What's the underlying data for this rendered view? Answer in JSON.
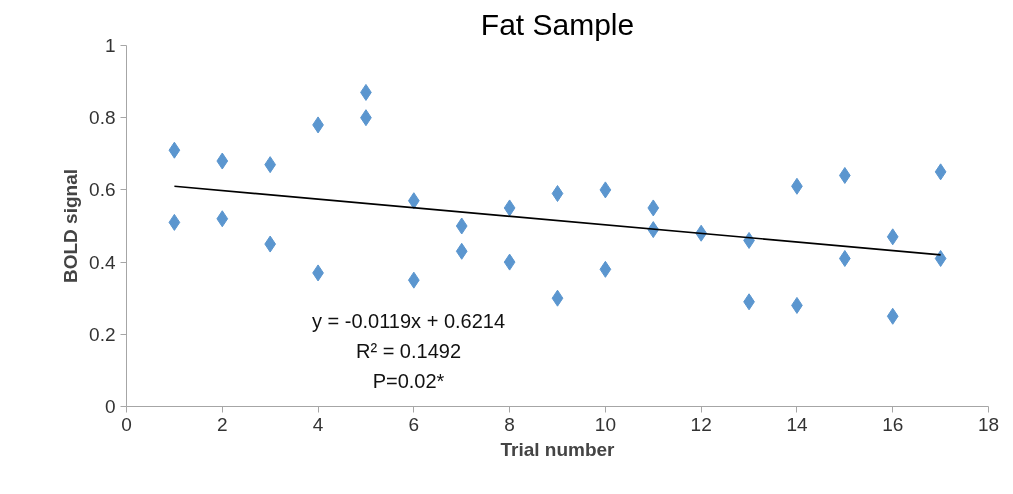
{
  "chart_data": {
    "type": "scatter",
    "title": "Fat Sample",
    "xlabel": "Trial number",
    "ylabel": "BOLD signal",
    "xlim": [
      0,
      18
    ],
    "xticks": [
      0,
      2,
      4,
      6,
      8,
      10,
      12,
      14,
      16,
      18
    ],
    "ylim": [
      0,
      1
    ],
    "yticks": [
      0,
      0.2,
      0.4,
      0.6,
      0.8,
      1
    ],
    "grid": false,
    "marker": "diamond",
    "annotations": [
      "y = -0.0119x + 0.6214",
      "R² = 0.1492",
      "P=0.02*"
    ],
    "series": [
      {
        "color": "#5b96cf",
        "x": [
          1,
          1,
          2,
          2,
          3,
          3,
          4,
          4,
          5,
          5,
          6,
          6,
          7,
          7,
          8,
          8,
          9,
          9,
          10,
          10,
          11,
          11,
          12,
          13,
          13,
          14,
          14,
          15,
          15,
          16,
          16,
          17,
          17
        ],
        "values": [
          0.71,
          0.51,
          0.68,
          0.52,
          0.67,
          0.45,
          0.78,
          0.37,
          0.87,
          0.8,
          0.57,
          0.35,
          0.5,
          0.43,
          0.55,
          0.4,
          0.59,
          0.3,
          0.6,
          0.38,
          0.55,
          0.49,
          0.48,
          0.46,
          0.29,
          0.61,
          0.28,
          0.64,
          0.41,
          0.47,
          0.25,
          0.65,
          0.41
        ]
      },
      {
        "type": "line",
        "color": "#000000",
        "marker": "none",
        "line_style": "solid",
        "x": [
          1,
          17
        ],
        "values": [
          0.61,
          0.42
        ]
      }
    ]
  }
}
